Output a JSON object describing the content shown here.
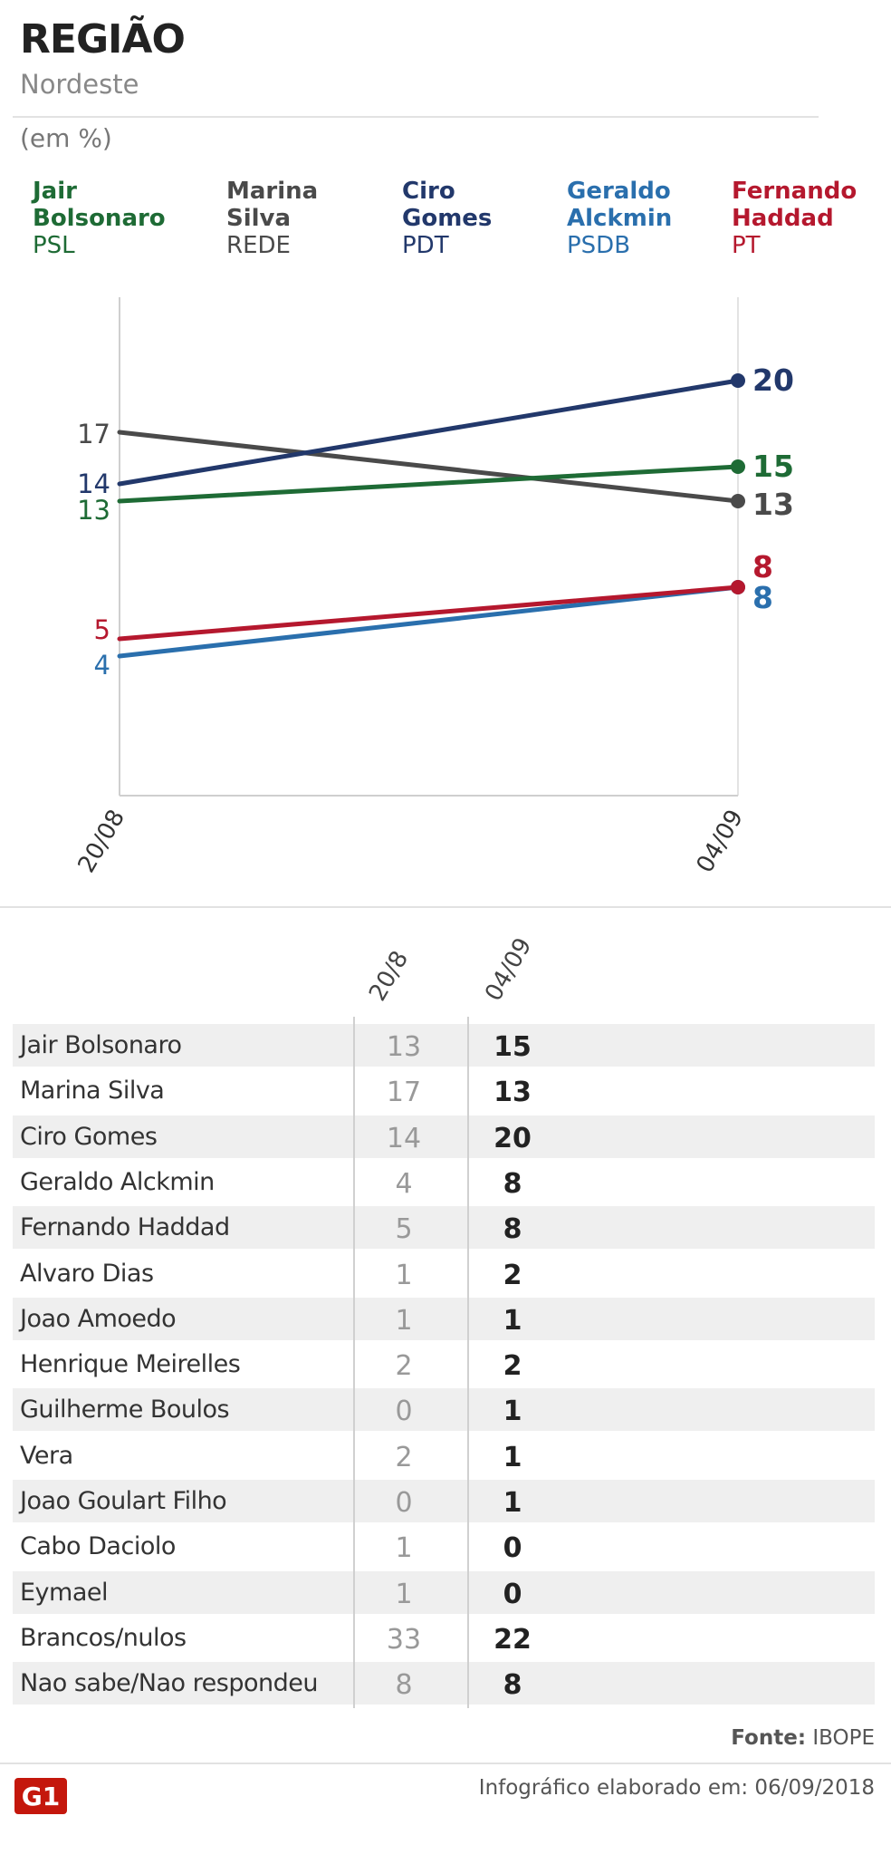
{
  "header": {
    "title": "REGIÃO",
    "subtitle": "Nordeste",
    "unit": "(em %)"
  },
  "legend": [
    {
      "name": "Jair Bolsonaro",
      "party": "PSL",
      "color": "#1e6b35"
    },
    {
      "name": "Marina Silva",
      "party": "REDE",
      "color": "#4a4a4a"
    },
    {
      "name": "Ciro Gomes",
      "party": "PDT",
      "color": "#22386b"
    },
    {
      "name": "Geraldo Alckmin",
      "party": "PSDB",
      "color": "#2a6fad"
    },
    {
      "name": "Fernando Haddad",
      "party": "PT",
      "color": "#b5182e"
    }
  ],
  "chart_data": {
    "type": "line",
    "x": [
      "20/08",
      "04/09"
    ],
    "ylim": [
      0,
      30
    ],
    "series": [
      {
        "name": "Jair Bolsonaro",
        "values": [
          13,
          15
        ],
        "color": "#1e6b35"
      },
      {
        "name": "Marina Silva",
        "values": [
          17,
          13
        ],
        "color": "#4a4a4a"
      },
      {
        "name": "Ciro Gomes",
        "values": [
          14,
          20
        ],
        "color": "#22386b"
      },
      {
        "name": "Geraldo Alckmin",
        "values": [
          4,
          8
        ],
        "color": "#2a6fad"
      },
      {
        "name": "Fernando Haddad",
        "values": [
          5,
          8
        ],
        "color": "#b5182e"
      }
    ]
  },
  "table": {
    "columns": [
      "20/8",
      "04/09"
    ],
    "rows": [
      {
        "name": "Jair Bolsonaro",
        "v1": "13",
        "v2": "15"
      },
      {
        "name": "Marina Silva",
        "v1": "17",
        "v2": "13"
      },
      {
        "name": "Ciro Gomes",
        "v1": "14",
        "v2": "20"
      },
      {
        "name": "Geraldo Alckmin",
        "v1": "4",
        "v2": "8"
      },
      {
        "name": "Fernando Haddad",
        "v1": "5",
        "v2": "8"
      },
      {
        "name": "Alvaro Dias",
        "v1": "1",
        "v2": "2"
      },
      {
        "name": "Joao Amoedo",
        "v1": "1",
        "v2": "1"
      },
      {
        "name": "Henrique Meirelles",
        "v1": "2",
        "v2": "2"
      },
      {
        "name": "Guilherme Boulos",
        "v1": "0",
        "v2": "1"
      },
      {
        "name": "Vera",
        "v1": "2",
        "v2": "1"
      },
      {
        "name": "Joao Goulart Filho",
        "v1": "0",
        "v2": "1"
      },
      {
        "name": "Cabo Daciolo",
        "v1": "1",
        "v2": "0"
      },
      {
        "name": "Eymael",
        "v1": "1",
        "v2": "0"
      },
      {
        "name": "Brancos/nulos",
        "v1": "33",
        "v2": "22"
      },
      {
        "name": "Nao sabe/Nao respondeu",
        "v1": "8",
        "v2": "8"
      }
    ]
  },
  "footer": {
    "source_label": "Fonte:",
    "source_value": "IBOPE",
    "credit": "Infográfico elaborado em: 06/09/2018",
    "logo_text": "G1",
    "logo_color": "#c4170c"
  }
}
